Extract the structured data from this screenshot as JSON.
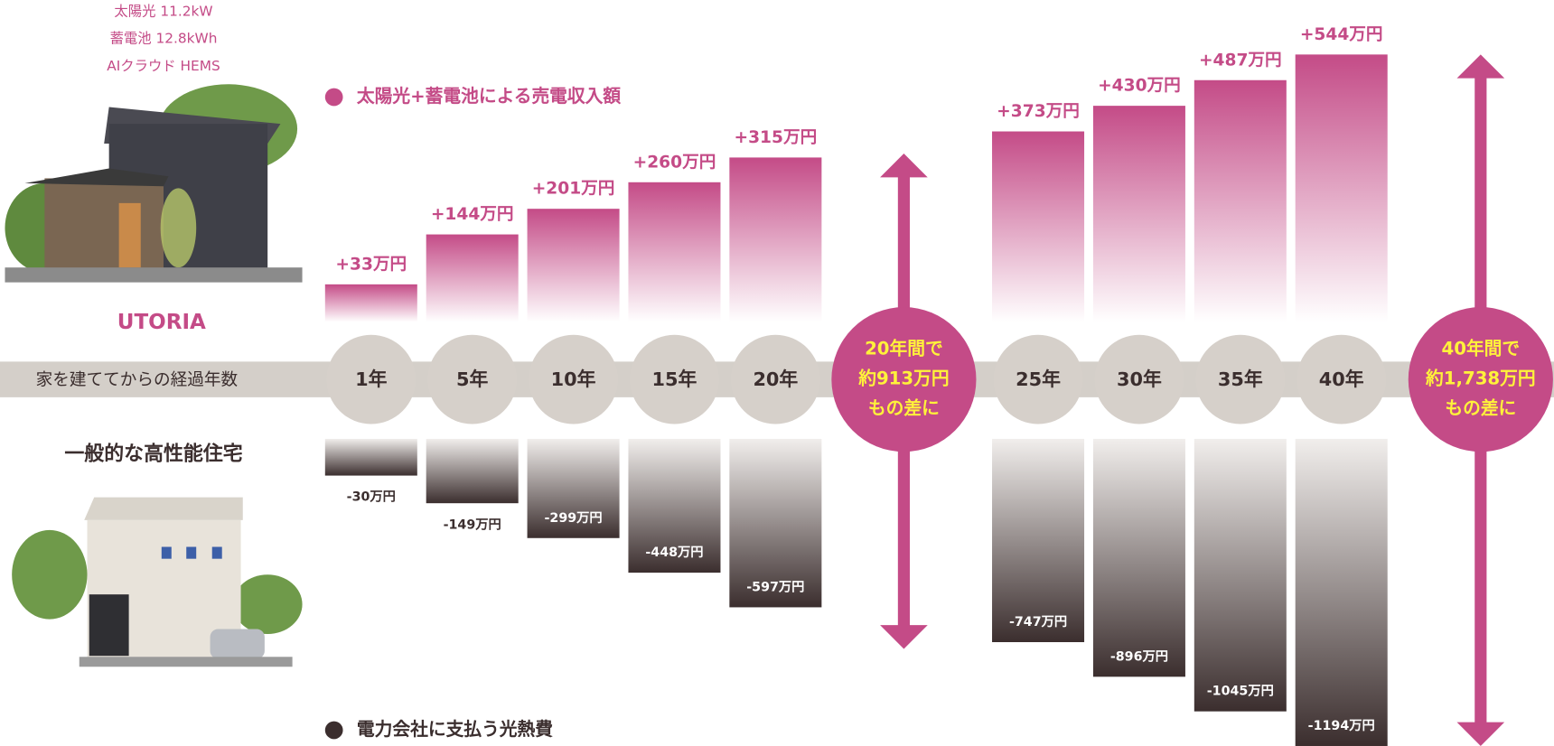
{
  "utoria": {
    "specs": [
      "太陽光 11.2kW",
      "蓄電池 12.8kWh",
      "AIクラウド HEMS"
    ],
    "name": "UTORIA"
  },
  "standard": {
    "name": "一般的な高性能住宅"
  },
  "chart_data": {
    "type": "bar",
    "axis_label": "家を建ててからの経過年数",
    "categories": [
      "1年",
      "5年",
      "10年",
      "15年",
      "20年",
      "25年",
      "30年",
      "35年",
      "40年"
    ],
    "series": [
      {
        "name": "太陽光+蓄電池による売電収入額",
        "color": "#c44b87",
        "values": [
          33,
          144,
          201,
          260,
          315,
          373,
          430,
          487,
          544
        ],
        "value_labels": [
          "+33万円",
          "+144万円",
          "+201万円",
          "+260万円",
          "+315万円",
          "+373万円",
          "+430万円",
          "+487万円",
          "+544万円"
        ]
      },
      {
        "name": "電力会社に支払う光熱費",
        "color": "#3b2e2e",
        "values": [
          -30,
          -149,
          -299,
          -448,
          -597,
          -747,
          -896,
          -1045,
          -1194
        ],
        "value_labels": [
          "-30万円",
          "-149万円",
          "-299万円",
          "-448万円",
          "-597万円",
          "-747万円",
          "-896万円",
          "-1045万円",
          "-1194万円"
        ]
      }
    ],
    "annotations": [
      {
        "after": "20年",
        "lines": [
          "20年間で",
          "約913万円",
          "もの差に"
        ]
      },
      {
        "after": "40年",
        "lines": [
          "40年間で",
          "約1,738万円",
          "もの差に"
        ]
      }
    ]
  }
}
